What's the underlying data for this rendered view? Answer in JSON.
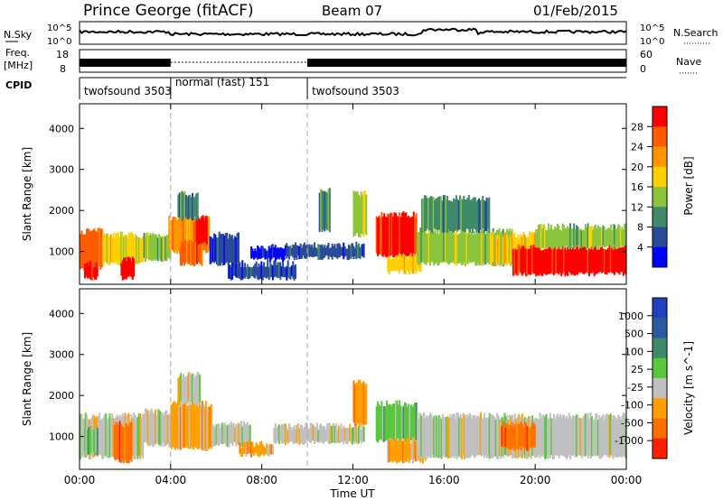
{
  "header": {
    "station": "Prince George (fitACF)",
    "beam": "Beam 07",
    "date": "01/Feb/2015"
  },
  "noise_panel": {
    "left_label": "N.Sky",
    "right_label": "N.Search",
    "left_ticks": [
      "10^5",
      "10^0"
    ],
    "right_ticks": [
      "10^5",
      "10^0"
    ]
  },
  "freq_panel": {
    "left_label_1": "Freq.",
    "left_label_2": "[MHz]",
    "left_ticks": [
      "18",
      "8"
    ],
    "right_label": "Nave",
    "right_ticks": [
      "60",
      "0"
    ]
  },
  "cpid": {
    "label": "CPID",
    "segments": [
      {
        "start_hour": 0,
        "name": "twofsound 3503"
      },
      {
        "start_hour": 4,
        "name": "normal (fast) 151"
      },
      {
        "start_hour": 10,
        "name": "twofsound 3503"
      }
    ]
  },
  "colors": {
    "power_scale": [
      "#0000ff",
      "#2a4a9a",
      "#3f8a6a",
      "#8cc43c",
      "#ffd000",
      "#ff9400",
      "#ff5a00",
      "#ff0000"
    ],
    "velocity_scale": [
      "#2040c0",
      "#2a5aa0",
      "#3f8a6a",
      "#5ac83c",
      "#c0c0c0",
      "#ffa000",
      "#ff7000",
      "#ff2000"
    ]
  },
  "chart_data": [
    {
      "type": "heatmap",
      "title": "",
      "xlabel": "",
      "ylabel": "Slant Range [km]",
      "x_range_hours": [
        0,
        24
      ],
      "ylim": [
        200,
        4600
      ],
      "y_ticks": [
        1000,
        2000,
        3000,
        4000
      ],
      "colorbar": {
        "label": "Power [dB]",
        "ticks": [
          "4",
          "8",
          "12",
          "16",
          "20",
          "24",
          "28"
        ]
      },
      "regions": [
        {
          "t0": 0.0,
          "t1": 1.0,
          "r0": 600,
          "r1": 1500,
          "level": 6
        },
        {
          "t0": 0.2,
          "t1": 0.8,
          "r0": 350,
          "r1": 700,
          "level": 7
        },
        {
          "t0": 1.0,
          "t1": 2.8,
          "r0": 700,
          "r1": 1400,
          "level": 4
        },
        {
          "t0": 1.8,
          "t1": 2.4,
          "r0": 350,
          "r1": 800,
          "level": 7
        },
        {
          "t0": 2.8,
          "t1": 4.0,
          "r0": 800,
          "r1": 1400,
          "level": 3
        },
        {
          "t0": 3.9,
          "t1": 5.7,
          "r0": 1000,
          "r1": 1800,
          "level": 5
        },
        {
          "t0": 4.4,
          "t1": 5.4,
          "r0": 700,
          "r1": 1200,
          "level": 6
        },
        {
          "t0": 5.0,
          "t1": 5.6,
          "r0": 1200,
          "r1": 1800,
          "level": 7
        },
        {
          "t0": 4.3,
          "t1": 5.2,
          "r0": 1800,
          "r1": 2400,
          "level": 2
        },
        {
          "t0": 5.7,
          "t1": 7.0,
          "r0": 700,
          "r1": 1400,
          "level": 1
        },
        {
          "t0": 6.5,
          "t1": 9.5,
          "r0": 350,
          "r1": 700,
          "level": 1
        },
        {
          "t0": 7.5,
          "t1": 9.0,
          "r0": 800,
          "r1": 1100,
          "level": 0
        },
        {
          "t0": 9.0,
          "t1": 12.5,
          "r0": 850,
          "r1": 1150,
          "level": 1
        },
        {
          "t0": 10.5,
          "t1": 11.0,
          "r0": 1500,
          "r1": 2500,
          "level": 2
        },
        {
          "t0": 12.0,
          "t1": 12.6,
          "r0": 1400,
          "r1": 2400,
          "level": 3
        },
        {
          "t0": 13.0,
          "t1": 14.8,
          "r0": 900,
          "r1": 1900,
          "level": 7
        },
        {
          "t0": 13.5,
          "t1": 15.0,
          "r0": 500,
          "r1": 900,
          "level": 4
        },
        {
          "t0": 14.8,
          "t1": 19.0,
          "r0": 700,
          "r1": 1500,
          "level": 3
        },
        {
          "t0": 15.0,
          "t1": 18.0,
          "r0": 1500,
          "r1": 2300,
          "level": 2
        },
        {
          "t0": 18.0,
          "t1": 20.0,
          "r0": 700,
          "r1": 1400,
          "level": 4
        },
        {
          "t0": 19.0,
          "t1": 24.0,
          "r0": 450,
          "r1": 1100,
          "level": 7
        },
        {
          "t0": 20.0,
          "t1": 24.0,
          "r0": 1100,
          "r1": 1600,
          "level": 3
        }
      ]
    },
    {
      "type": "heatmap",
      "title": "",
      "xlabel": "Time UT",
      "ylabel": "Slant Range [km]",
      "x_range_hours": [
        0,
        24
      ],
      "x_ticks": [
        "00:00",
        "04:00",
        "08:00",
        "12:00",
        "16:00",
        "20:00",
        "00:00"
      ],
      "ylim": [
        200,
        4600
      ],
      "y_ticks": [
        1000,
        2000,
        3000,
        4000
      ],
      "colorbar": {
        "label": "Velocity [m s^-1]",
        "ticks": [
          "1000",
          "500",
          "100",
          "25",
          "-25",
          "-100",
          "-500",
          "-1000"
        ]
      },
      "regions": [
        {
          "t0": 0.0,
          "t1": 2.8,
          "r0": 500,
          "r1": 1500,
          "level": 4
        },
        {
          "t0": 0.2,
          "t1": 0.8,
          "r0": 600,
          "r1": 1200,
          "level": 3
        },
        {
          "t0": 1.5,
          "t1": 2.3,
          "r0": 400,
          "r1": 1300,
          "level": 6
        },
        {
          "t0": 2.8,
          "t1": 4.0,
          "r0": 800,
          "r1": 1600,
          "level": 4
        },
        {
          "t0": 4.0,
          "t1": 5.8,
          "r0": 700,
          "r1": 1800,
          "level": 5
        },
        {
          "t0": 4.3,
          "t1": 5.3,
          "r0": 1800,
          "r1": 2500,
          "level": 4
        },
        {
          "t0": 5.8,
          "t1": 7.5,
          "r0": 800,
          "r1": 1300,
          "level": 4
        },
        {
          "t0": 7.0,
          "t1": 8.5,
          "r0": 550,
          "r1": 800,
          "level": 5
        },
        {
          "t0": 8.5,
          "t1": 12.5,
          "r0": 850,
          "r1": 1250,
          "level": 4
        },
        {
          "t0": 12.0,
          "t1": 12.6,
          "r0": 1300,
          "r1": 2300,
          "level": 5
        },
        {
          "t0": 13.0,
          "t1": 14.8,
          "r0": 900,
          "r1": 1800,
          "level": 3
        },
        {
          "t0": 13.5,
          "t1": 15.2,
          "r0": 400,
          "r1": 900,
          "level": 5
        },
        {
          "t0": 14.8,
          "t1": 24.0,
          "r0": 500,
          "r1": 1500,
          "level": 4
        },
        {
          "t0": 18.5,
          "t1": 20.0,
          "r0": 700,
          "r1": 1300,
          "level": 6
        }
      ]
    }
  ]
}
